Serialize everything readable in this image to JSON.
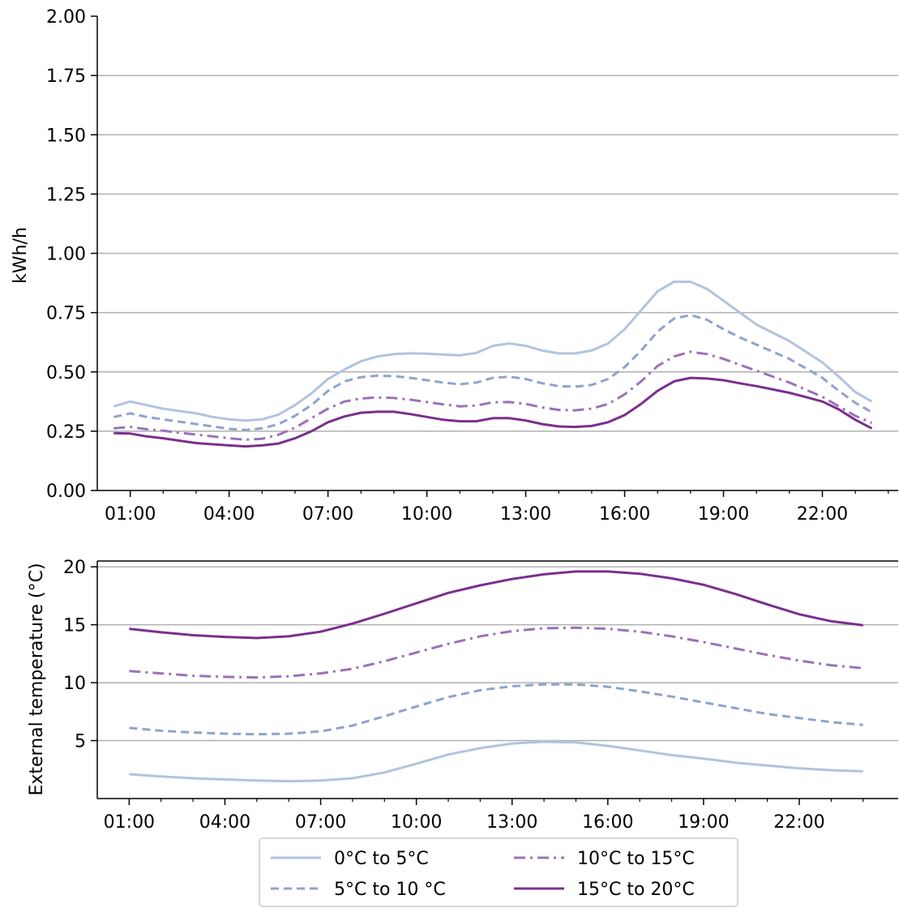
{
  "chart_data": [
    {
      "type": "line",
      "title": "",
      "xlabel": "",
      "ylabel": "kWh/h",
      "ylim": [
        0,
        2.0
      ],
      "yticks": [
        "0.00",
        "0.25",
        "0.50",
        "0.75",
        "1.00",
        "1.25",
        "1.50",
        "1.75",
        "2.00"
      ],
      "xticks": [
        "01:00",
        "04:00",
        "07:00",
        "10:00",
        "13:00",
        "16:00",
        "19:00",
        "22:00"
      ],
      "grid": "horizontal",
      "x": [
        0.5,
        1.0,
        1.5,
        2.0,
        2.5,
        3.0,
        3.5,
        4.0,
        4.5,
        5.0,
        5.5,
        6.0,
        6.5,
        7.0,
        7.5,
        8.0,
        8.5,
        9.0,
        9.5,
        10.0,
        10.5,
        11.0,
        11.5,
        12.0,
        12.5,
        13.0,
        13.5,
        14.0,
        14.5,
        15.0,
        15.5,
        16.0,
        16.5,
        17.0,
        17.5,
        18.0,
        18.5,
        19.0,
        19.5,
        20.0,
        20.5,
        21.0,
        21.5,
        22.0,
        22.5,
        23.0,
        23.5
      ],
      "series": [
        {
          "name": "0°C to 5°C",
          "color": "#b0c4de",
          "dash": "solid",
          "values": [
            0.355,
            0.375,
            0.36,
            0.345,
            0.335,
            0.325,
            0.31,
            0.3,
            0.295,
            0.3,
            0.32,
            0.36,
            0.41,
            0.47,
            0.51,
            0.545,
            0.565,
            0.575,
            0.578,
            0.577,
            0.573,
            0.57,
            0.58,
            0.61,
            0.62,
            0.61,
            0.59,
            0.578,
            0.578,
            0.59,
            0.62,
            0.68,
            0.76,
            0.84,
            0.88,
            0.88,
            0.85,
            0.8,
            0.75,
            0.7,
            0.665,
            0.63,
            0.585,
            0.54,
            0.48,
            0.415,
            0.375
          ]
        },
        {
          "name": "5°C to 10 °C",
          "color": "#8fa3cc",
          "dash": "dashed",
          "values": [
            0.31,
            0.325,
            0.31,
            0.3,
            0.29,
            0.28,
            0.27,
            0.26,
            0.255,
            0.262,
            0.28,
            0.315,
            0.36,
            0.42,
            0.46,
            0.478,
            0.484,
            0.482,
            0.475,
            0.465,
            0.455,
            0.448,
            0.455,
            0.475,
            0.48,
            0.47,
            0.452,
            0.44,
            0.438,
            0.445,
            0.47,
            0.52,
            0.59,
            0.67,
            0.725,
            0.74,
            0.72,
            0.68,
            0.645,
            0.615,
            0.585,
            0.555,
            0.515,
            0.475,
            0.42,
            0.37,
            0.33
          ]
        },
        {
          "name": "10°C to 15°C",
          "color": "#9b72b9",
          "dash": "dashdot",
          "values": [
            0.262,
            0.268,
            0.258,
            0.252,
            0.243,
            0.236,
            0.228,
            0.22,
            0.214,
            0.218,
            0.235,
            0.265,
            0.305,
            0.345,
            0.375,
            0.388,
            0.392,
            0.39,
            0.383,
            0.373,
            0.363,
            0.355,
            0.358,
            0.372,
            0.373,
            0.365,
            0.35,
            0.34,
            0.338,
            0.345,
            0.365,
            0.405,
            0.46,
            0.525,
            0.565,
            0.585,
            0.575,
            0.555,
            0.53,
            0.505,
            0.48,
            0.455,
            0.425,
            0.395,
            0.355,
            0.315,
            0.285
          ]
        },
        {
          "name": "15°C to 20°C",
          "color": "#7b2f8e",
          "dash": "solid",
          "values": [
            0.242,
            0.24,
            0.228,
            0.22,
            0.21,
            0.2,
            0.195,
            0.19,
            0.186,
            0.19,
            0.198,
            0.22,
            0.25,
            0.288,
            0.312,
            0.328,
            0.332,
            0.332,
            0.322,
            0.31,
            0.298,
            0.292,
            0.292,
            0.305,
            0.305,
            0.295,
            0.28,
            0.27,
            0.268,
            0.272,
            0.288,
            0.318,
            0.365,
            0.42,
            0.46,
            0.475,
            0.472,
            0.465,
            0.452,
            0.44,
            0.426,
            0.412,
            0.394,
            0.375,
            0.342,
            0.298,
            0.262
          ]
        }
      ]
    },
    {
      "type": "line",
      "title": "",
      "xlabel": "",
      "ylabel": "External temperature (°C)",
      "ylim": [
        0,
        20.5
      ],
      "yticks": [
        "5",
        "10",
        "15",
        "20"
      ],
      "xticks": [
        "01:00",
        "04:00",
        "07:00",
        "10:00",
        "13:00",
        "16:00",
        "19:00",
        "22:00"
      ],
      "grid": "horizontal",
      "x": [
        1,
        2,
        3,
        4,
        5,
        6,
        7,
        8,
        9,
        10,
        11,
        12,
        13,
        14,
        15,
        16,
        17,
        18,
        19,
        20,
        21,
        22,
        23,
        24
      ],
      "series": [
        {
          "name": "0°C to 5°C",
          "color": "#b0c4de",
          "dash": "solid",
          "values": [
            2.1,
            1.9,
            1.75,
            1.65,
            1.55,
            1.5,
            1.55,
            1.75,
            2.25,
            3.0,
            3.8,
            4.35,
            4.75,
            4.9,
            4.85,
            4.55,
            4.15,
            3.75,
            3.45,
            3.1,
            2.85,
            2.6,
            2.45,
            2.35
          ]
        },
        {
          "name": "5°C to 10 °C",
          "color": "#8fa3cc",
          "dash": "dashed",
          "values": [
            6.1,
            5.85,
            5.7,
            5.6,
            5.55,
            5.6,
            5.8,
            6.3,
            7.1,
            7.95,
            8.75,
            9.35,
            9.7,
            9.85,
            9.85,
            9.65,
            9.25,
            8.8,
            8.3,
            7.8,
            7.3,
            6.95,
            6.6,
            6.35
          ]
        },
        {
          "name": "10°C to 15°C",
          "color": "#9b72b9",
          "dash": "dashdot",
          "values": [
            11.0,
            10.8,
            10.6,
            10.5,
            10.45,
            10.55,
            10.8,
            11.2,
            11.85,
            12.6,
            13.35,
            14.0,
            14.45,
            14.7,
            14.75,
            14.65,
            14.4,
            14.0,
            13.5,
            12.95,
            12.4,
            11.9,
            11.5,
            11.25
          ]
        },
        {
          "name": "15°C to 20°C",
          "color": "#7b2f8e",
          "dash": "solid",
          "values": [
            14.65,
            14.35,
            14.1,
            13.95,
            13.85,
            14.0,
            14.4,
            15.1,
            15.95,
            16.85,
            17.75,
            18.4,
            18.95,
            19.35,
            19.6,
            19.6,
            19.4,
            19.0,
            18.45,
            17.65,
            16.75,
            15.9,
            15.3,
            14.95
          ]
        }
      ]
    }
  ],
  "legend": {
    "placement": "bottom-center",
    "items": [
      {
        "label": "0°C to 5°C",
        "color": "#b0c4de",
        "dash": "solid"
      },
      {
        "label": "10°C to 15°C",
        "color": "#9b72b9",
        "dash": "dashdot"
      },
      {
        "label": "5°C to 10 °C",
        "color": "#8fa3cc",
        "dash": "dashed"
      },
      {
        "label": "15°C to 20°C",
        "color": "#7b2f8e",
        "dash": "solid"
      }
    ]
  }
}
